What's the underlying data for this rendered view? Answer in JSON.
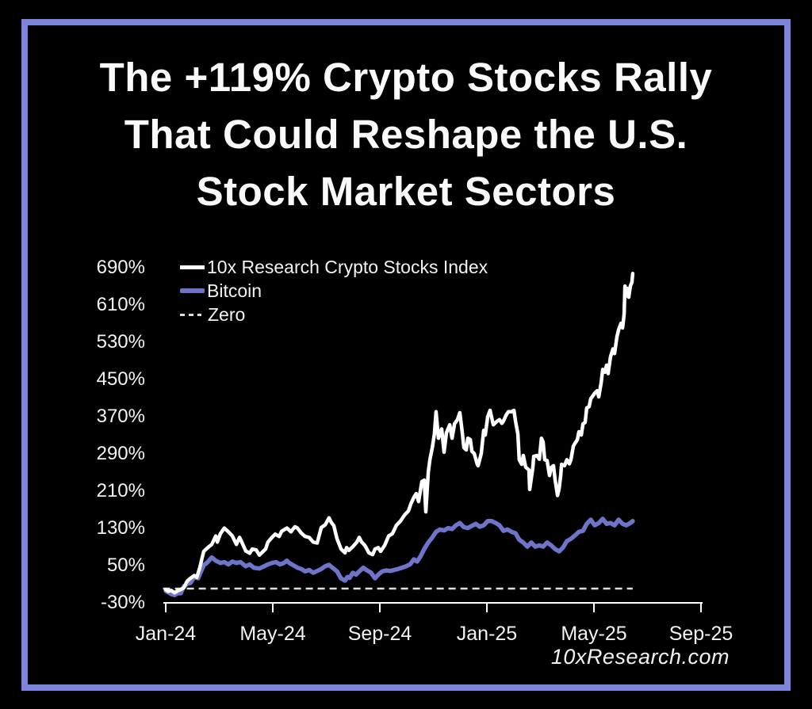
{
  "frame": {
    "border_color": "#7e86db",
    "background": "#000000"
  },
  "title": {
    "lines": [
      "The +119% Crypto Stocks Rally",
      "That Could Reshape the U.S.",
      "Stock Market Sectors"
    ],
    "color": "#fafafa"
  },
  "footer": {
    "text": "10xResearch.com"
  },
  "chart_data": {
    "type": "line",
    "title": "",
    "xlabel": "",
    "ylabel": "",
    "grid": false,
    "legend_position": "top-left",
    "x_unit": "months since Jan-2024",
    "x_tick_months": [
      0,
      4,
      8,
      12,
      16,
      20
    ],
    "x_tick_labels": [
      "Jan-24",
      "May-24",
      "Sep-24",
      "Jan-25",
      "May-25",
      "Sep-25"
    ],
    "y_ticks": [
      690,
      610,
      530,
      450,
      370,
      290,
      210,
      130,
      50,
      -30
    ],
    "y_tick_labels": [
      "690%",
      "610%",
      "530%",
      "450%",
      "370%",
      "290%",
      "210%",
      "130%",
      "50%",
      "-30%"
    ],
    "ylim": [
      -65,
      720
    ],
    "xlim_months": [
      -0.12,
      20
    ],
    "series": [
      {
        "name": "10x Research Crypto Stocks Index",
        "color": "#ffffff",
        "style": "solid",
        "points": [
          [
            0,
            -2
          ],
          [
            0.09,
            -6
          ],
          [
            0.21,
            -4
          ],
          [
            0.33,
            -9
          ],
          [
            0.44,
            -5
          ],
          [
            0.56,
            -2
          ],
          [
            0.68,
            2
          ],
          [
            0.8,
            16
          ],
          [
            0.92,
            22
          ],
          [
            1.07,
            28
          ],
          [
            1.16,
            24
          ],
          [
            1.27,
            45
          ],
          [
            1.42,
            80
          ],
          [
            1.57,
            88
          ],
          [
            1.72,
            95
          ],
          [
            1.87,
            113
          ],
          [
            1.93,
            100
          ],
          [
            2.04,
            118
          ],
          [
            2.19,
            130
          ],
          [
            2.34,
            122
          ],
          [
            2.49,
            113
          ],
          [
            2.64,
            95
          ],
          [
            2.76,
            110
          ],
          [
            2.84,
            100
          ],
          [
            2.99,
            81
          ],
          [
            3.14,
            76
          ],
          [
            3.23,
            85
          ],
          [
            3.38,
            83
          ],
          [
            3.5,
            72
          ],
          [
            3.64,
            80
          ],
          [
            3.73,
            85
          ],
          [
            3.82,
            100
          ],
          [
            3.97,
            110
          ],
          [
            4.09,
            117
          ],
          [
            4.24,
            112
          ],
          [
            4.33,
            123
          ],
          [
            4.53,
            130
          ],
          [
            4.68,
            122
          ],
          [
            4.83,
            133
          ],
          [
            4.92,
            130
          ],
          [
            5.07,
            119
          ],
          [
            5.21,
            112
          ],
          [
            5.36,
            110
          ],
          [
            5.51,
            100
          ],
          [
            5.66,
            98
          ],
          [
            5.81,
            131
          ],
          [
            5.96,
            137
          ],
          [
            6.1,
            152
          ],
          [
            6.19,
            142
          ],
          [
            6.28,
            135
          ],
          [
            6.4,
            107
          ],
          [
            6.55,
            85
          ],
          [
            6.7,
            77
          ],
          [
            6.76,
            88
          ],
          [
            6.84,
            82
          ],
          [
            6.99,
            90
          ],
          [
            7.14,
            100
          ],
          [
            7.23,
            110
          ],
          [
            7.32,
            100
          ],
          [
            7.44,
            93
          ],
          [
            7.59,
            77
          ],
          [
            7.73,
            73
          ],
          [
            7.82,
            85
          ],
          [
            7.94,
            88
          ],
          [
            8.03,
            80
          ],
          [
            8.18,
            93
          ],
          [
            8.33,
            113
          ],
          [
            8.47,
            118
          ],
          [
            8.62,
            136
          ],
          [
            8.77,
            145
          ],
          [
            8.92,
            158
          ],
          [
            9.07,
            167
          ],
          [
            9.16,
            182
          ],
          [
            9.27,
            196
          ],
          [
            9.36,
            204
          ],
          [
            9.45,
            187
          ],
          [
            9.57,
            230
          ],
          [
            9.66,
            233
          ],
          [
            9.72,
            165
          ],
          [
            9.81,
            250
          ],
          [
            9.87,
            277
          ],
          [
            9.96,
            303
          ],
          [
            10.04,
            332
          ],
          [
            10.1,
            380
          ],
          [
            10.19,
            323
          ],
          [
            10.31,
            343
          ],
          [
            10.4,
            293
          ],
          [
            10.49,
            335
          ],
          [
            10.61,
            352
          ],
          [
            10.7,
            323
          ],
          [
            10.79,
            354
          ],
          [
            10.9,
            363
          ],
          [
            10.99,
            378
          ],
          [
            11.08,
            335
          ],
          [
            11.14,
            303
          ],
          [
            11.23,
            298
          ],
          [
            11.29,
            323
          ],
          [
            11.38,
            320
          ],
          [
            11.44,
            295
          ],
          [
            11.53,
            290
          ],
          [
            11.64,
            267
          ],
          [
            11.67,
            264
          ],
          [
            11.79,
            290
          ],
          [
            11.88,
            340
          ],
          [
            11.94,
            330
          ],
          [
            12.03,
            369
          ],
          [
            12.12,
            383
          ],
          [
            12.24,
            352
          ],
          [
            12.39,
            360
          ],
          [
            12.47,
            363
          ],
          [
            12.56,
            355
          ],
          [
            12.62,
            360
          ],
          [
            12.71,
            372
          ],
          [
            12.8,
            380
          ],
          [
            12.92,
            380
          ],
          [
            13.01,
            383
          ],
          [
            13.07,
            360
          ],
          [
            13.16,
            332
          ],
          [
            13.21,
            277
          ],
          [
            13.3,
            267
          ],
          [
            13.36,
            286
          ],
          [
            13.45,
            261
          ],
          [
            13.57,
            255
          ],
          [
            13.6,
            213
          ],
          [
            13.72,
            261
          ],
          [
            13.75,
            284
          ],
          [
            13.87,
            286
          ],
          [
            13.96,
            278
          ],
          [
            14.04,
            323
          ],
          [
            14.1,
            315
          ],
          [
            14.16,
            277
          ],
          [
            14.25,
            275
          ],
          [
            14.34,
            243
          ],
          [
            14.4,
            260
          ],
          [
            14.49,
            264
          ],
          [
            14.55,
            233
          ],
          [
            14.64,
            200
          ],
          [
            14.7,
            215
          ],
          [
            14.76,
            243
          ],
          [
            14.79,
            267
          ],
          [
            14.9,
            264
          ],
          [
            14.99,
            277
          ],
          [
            15.08,
            268
          ],
          [
            15.14,
            277
          ],
          [
            15.23,
            306
          ],
          [
            15.29,
            312
          ],
          [
            15.38,
            320
          ],
          [
            15.44,
            337
          ],
          [
            15.53,
            330
          ],
          [
            15.59,
            354
          ],
          [
            15.67,
            357
          ],
          [
            15.73,
            388
          ],
          [
            15.82,
            391
          ],
          [
            15.88,
            408
          ],
          [
            15.97,
            415
          ],
          [
            16.03,
            420
          ],
          [
            16.12,
            425
          ],
          [
            16.18,
            412
          ],
          [
            16.27,
            442
          ],
          [
            16.33,
            471
          ],
          [
            16.41,
            465
          ],
          [
            16.47,
            480
          ],
          [
            16.53,
            462
          ],
          [
            16.62,
            498
          ],
          [
            16.71,
            515
          ],
          [
            16.77,
            505
          ],
          [
            16.86,
            541
          ],
          [
            16.92,
            556
          ],
          [
            17.01,
            570
          ],
          [
            17.07,
            560
          ],
          [
            17.13,
            590
          ],
          [
            17.16,
            650
          ],
          [
            17.21,
            629
          ],
          [
            17.24,
            645
          ],
          [
            17.3,
            626
          ],
          [
            17.36,
            650
          ],
          [
            17.42,
            658
          ],
          [
            17.45,
            677
          ]
        ]
      },
      {
        "name": "Bitcoin",
        "color": "#6e74c8",
        "style": "solid",
        "points": [
          [
            0,
            -5
          ],
          [
            0.09,
            -8
          ],
          [
            0.21,
            -12
          ],
          [
            0.33,
            -14
          ],
          [
            0.44,
            -10
          ],
          [
            0.56,
            -10
          ],
          [
            0.68,
            5
          ],
          [
            0.8,
            10
          ],
          [
            0.92,
            12
          ],
          [
            1.07,
            25
          ],
          [
            1.21,
            22
          ],
          [
            1.42,
            50
          ],
          [
            1.57,
            57
          ],
          [
            1.72,
            67
          ],
          [
            1.87,
            60
          ],
          [
            2.04,
            55
          ],
          [
            2.19,
            57
          ],
          [
            2.34,
            52
          ],
          [
            2.49,
            58
          ],
          [
            2.64,
            55
          ],
          [
            2.79,
            57
          ],
          [
            2.99,
            48
          ],
          [
            3.14,
            52
          ],
          [
            3.29,
            45
          ],
          [
            3.5,
            43
          ],
          [
            3.64,
            47
          ],
          [
            3.82,
            52
          ],
          [
            3.97,
            55
          ],
          [
            4.12,
            57
          ],
          [
            4.27,
            52
          ],
          [
            4.41,
            55
          ],
          [
            4.53,
            60
          ],
          [
            4.62,
            55
          ],
          [
            4.77,
            50
          ],
          [
            4.92,
            45
          ],
          [
            5.07,
            42
          ],
          [
            5.21,
            37
          ],
          [
            5.36,
            40
          ],
          [
            5.51,
            34
          ],
          [
            5.66,
            38
          ],
          [
            5.81,
            42
          ],
          [
            5.96,
            48
          ],
          [
            6.1,
            51
          ],
          [
            6.25,
            44
          ],
          [
            6.4,
            37
          ],
          [
            6.55,
            22
          ],
          [
            6.7,
            17
          ],
          [
            6.79,
            25
          ],
          [
            6.87,
            23
          ],
          [
            6.99,
            34
          ],
          [
            7.11,
            30
          ],
          [
            7.23,
            37
          ],
          [
            7.38,
            45
          ],
          [
            7.5,
            40
          ],
          [
            7.67,
            34
          ],
          [
            7.82,
            22
          ],
          [
            7.94,
            30
          ],
          [
            8.09,
            37
          ],
          [
            8.24,
            39
          ],
          [
            8.39,
            38
          ],
          [
            8.53,
            40
          ],
          [
            8.68,
            42
          ],
          [
            8.83,
            45
          ],
          [
            8.98,
            48
          ],
          [
            9.13,
            52
          ],
          [
            9.27,
            63
          ],
          [
            9.39,
            58
          ],
          [
            9.51,
            68
          ],
          [
            9.66,
            85
          ],
          [
            9.81,
            99
          ],
          [
            9.96,
            110
          ],
          [
            10.1,
            122
          ],
          [
            10.25,
            127
          ],
          [
            10.4,
            125
          ],
          [
            10.55,
            130
          ],
          [
            10.7,
            128
          ],
          [
            10.84,
            136
          ],
          [
            10.99,
            141
          ],
          [
            11.14,
            132
          ],
          [
            11.29,
            130
          ],
          [
            11.44,
            135
          ],
          [
            11.59,
            139
          ],
          [
            11.73,
            133
          ],
          [
            11.88,
            136
          ],
          [
            12.03,
            145
          ],
          [
            12.18,
            145
          ],
          [
            12.33,
            141
          ],
          [
            12.47,
            136
          ],
          [
            12.62,
            124
          ],
          [
            12.77,
            127
          ],
          [
            12.92,
            122
          ],
          [
            13.07,
            119
          ],
          [
            13.21,
            105
          ],
          [
            13.36,
            99
          ],
          [
            13.51,
            90
          ],
          [
            13.66,
            99
          ],
          [
            13.81,
            90
          ],
          [
            13.96,
            93
          ],
          [
            14.1,
            90
          ],
          [
            14.25,
            99
          ],
          [
            14.4,
            93
          ],
          [
            14.55,
            85
          ],
          [
            14.7,
            80
          ],
          [
            14.84,
            88
          ],
          [
            14.99,
            102
          ],
          [
            15.14,
            107
          ],
          [
            15.29,
            114
          ],
          [
            15.44,
            122
          ],
          [
            15.59,
            124
          ],
          [
            15.73,
            139
          ],
          [
            15.88,
            148
          ],
          [
            16.03,
            136
          ],
          [
            16.18,
            141
          ],
          [
            16.33,
            150
          ],
          [
            16.47,
            139
          ],
          [
            16.62,
            141
          ],
          [
            16.77,
            136
          ],
          [
            16.92,
            148
          ],
          [
            17.07,
            139
          ],
          [
            17.21,
            136
          ],
          [
            17.36,
            141
          ],
          [
            17.45,
            145
          ]
        ]
      },
      {
        "name": "Zero",
        "color": "#dedede",
        "style": "dashed",
        "points": [
          [
            -0.1,
            0
          ],
          [
            17.45,
            0
          ]
        ]
      }
    ]
  }
}
